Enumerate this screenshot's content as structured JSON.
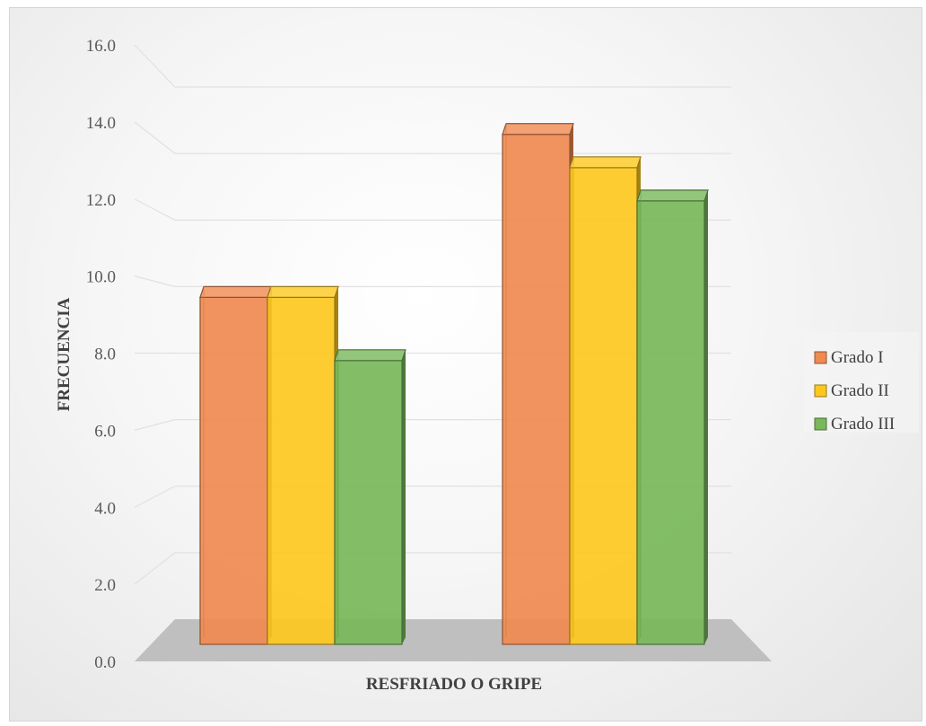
{
  "chart_data": {
    "type": "bar",
    "categories": [
      "",
      ""
    ],
    "series": [
      {
        "name": "Grado I",
        "values": [
          10.0,
          14.9
        ]
      },
      {
        "name": "Grado II",
        "values": [
          10.0,
          13.9
        ]
      },
      {
        "name": "Grado III",
        "values": [
          8.1,
          12.9
        ]
      }
    ],
    "title": "",
    "xlabel": "RESFRIADO O GRIPE",
    "ylabel": "FRECUENCIA",
    "ylim": [
      0,
      16
    ],
    "yticks": [
      "0.0",
      "2.0",
      "4.0",
      "6.0",
      "8.0",
      "10.0",
      "12.0",
      "14.0",
      "16.0"
    ],
    "grid": true,
    "legend_position": "right",
    "colors": {
      "Grado I": "#f08a50",
      "Grado II": "#fdc81e",
      "Grado III": "#78b85a"
    }
  }
}
